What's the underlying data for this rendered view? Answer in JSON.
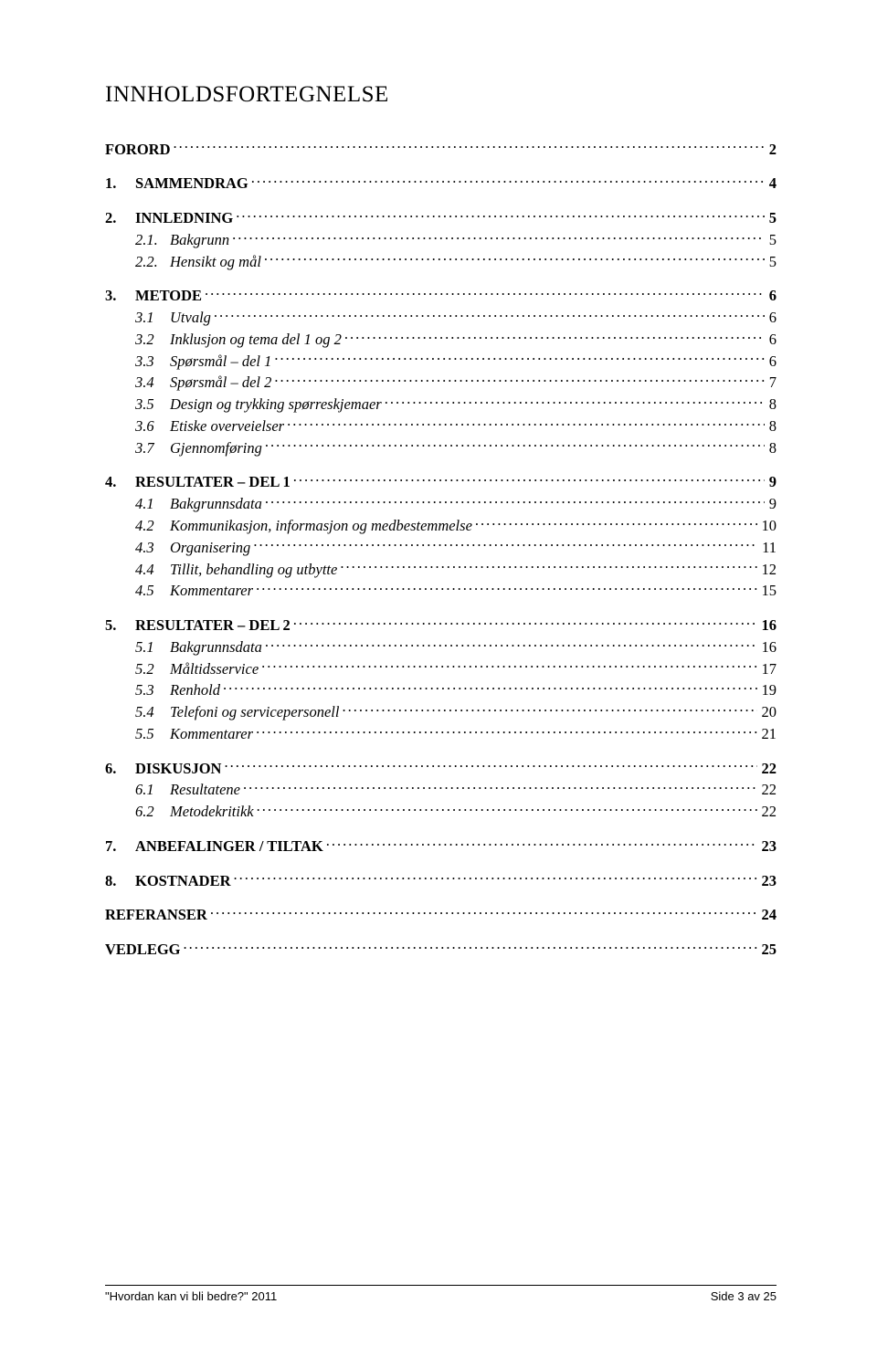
{
  "title": "INNHOLDSFORTEGNELSE",
  "toc": [
    {
      "level": 1,
      "num": "",
      "label": "FORORD",
      "page": "2"
    },
    {
      "level": 1,
      "num": "1.",
      "label": "SAMMENDRAG",
      "page": "4"
    },
    {
      "level": 1,
      "num": "2.",
      "label": "INNLEDNING",
      "page": "5"
    },
    {
      "level": 2,
      "num": "2.1.",
      "label": "Bakgrunn",
      "page": "5"
    },
    {
      "level": 2,
      "num": "2.2.",
      "label": "Hensikt og mål",
      "page": "5"
    },
    {
      "level": 1,
      "num": "3.",
      "label": "METODE",
      "page": "6"
    },
    {
      "level": 2,
      "num": "3.1",
      "label": "Utvalg",
      "page": "6"
    },
    {
      "level": 2,
      "num": "3.2",
      "label": "Inklusjon og tema del 1 og 2",
      "page": "6"
    },
    {
      "level": 2,
      "num": "3.3",
      "label": "Spørsmål – del 1",
      "page": "6"
    },
    {
      "level": 2,
      "num": "3.4",
      "label": "Spørsmål – del 2",
      "page": "7"
    },
    {
      "level": 2,
      "num": "3.5",
      "label": "Design og trykking spørreskjemaer",
      "page": "8"
    },
    {
      "level": 2,
      "num": "3.6",
      "label": "Etiske overveielser",
      "page": "8"
    },
    {
      "level": 2,
      "num": "3.7",
      "label": "Gjennomføring",
      "page": "8"
    },
    {
      "level": 1,
      "num": "4.",
      "label": "RESULTATER – DEL 1",
      "page": "9"
    },
    {
      "level": 2,
      "num": "4.1",
      "label": "Bakgrunnsdata",
      "page": "9"
    },
    {
      "level": 2,
      "num": "4.2",
      "label": "Kommunikasjon, informasjon og medbestemmelse",
      "page": "10"
    },
    {
      "level": 2,
      "num": "4.3",
      "label": "Organisering",
      "page": "11"
    },
    {
      "level": 2,
      "num": "4.4",
      "label": "Tillit, behandling og utbytte",
      "page": "12"
    },
    {
      "level": 2,
      "num": "4.5",
      "label": "Kommentarer",
      "page": "15"
    },
    {
      "level": 1,
      "num": "5.",
      "label": "RESULTATER – DEL 2",
      "page": "16"
    },
    {
      "level": 2,
      "num": "5.1",
      "label": "Bakgrunnsdata",
      "page": "16"
    },
    {
      "level": 2,
      "num": "5.2",
      "label": "Måltidsservice",
      "page": "17"
    },
    {
      "level": 2,
      "num": "5.3",
      "label": "Renhold",
      "page": "19"
    },
    {
      "level": 2,
      "num": "5.4",
      "label": "Telefoni og servicepersonell",
      "page": "20"
    },
    {
      "level": 2,
      "num": "5.5",
      "label": "Kommentarer",
      "page": "21"
    },
    {
      "level": 1,
      "num": "6.",
      "label": "DISKUSJON",
      "page": "22"
    },
    {
      "level": 2,
      "num": "6.1",
      "label": "Resultatene",
      "page": "22"
    },
    {
      "level": 2,
      "num": "6.2",
      "label": "Metodekritikk",
      "page": "22"
    },
    {
      "level": 1,
      "num": "7.",
      "label": "ANBEFALINGER / TILTAK",
      "page": "23"
    },
    {
      "level": 1,
      "num": "8.",
      "label": "KOSTNADER",
      "page": "23"
    },
    {
      "level": 1,
      "num": "",
      "label": "REFERANSER",
      "page": "24"
    },
    {
      "level": 1,
      "num": "",
      "label": "VEDLEGG",
      "page": "25"
    }
  ],
  "footer": {
    "left": "\"Hvordan kan vi bli bedre?\" 2011",
    "right": "Side 3 av 25"
  }
}
